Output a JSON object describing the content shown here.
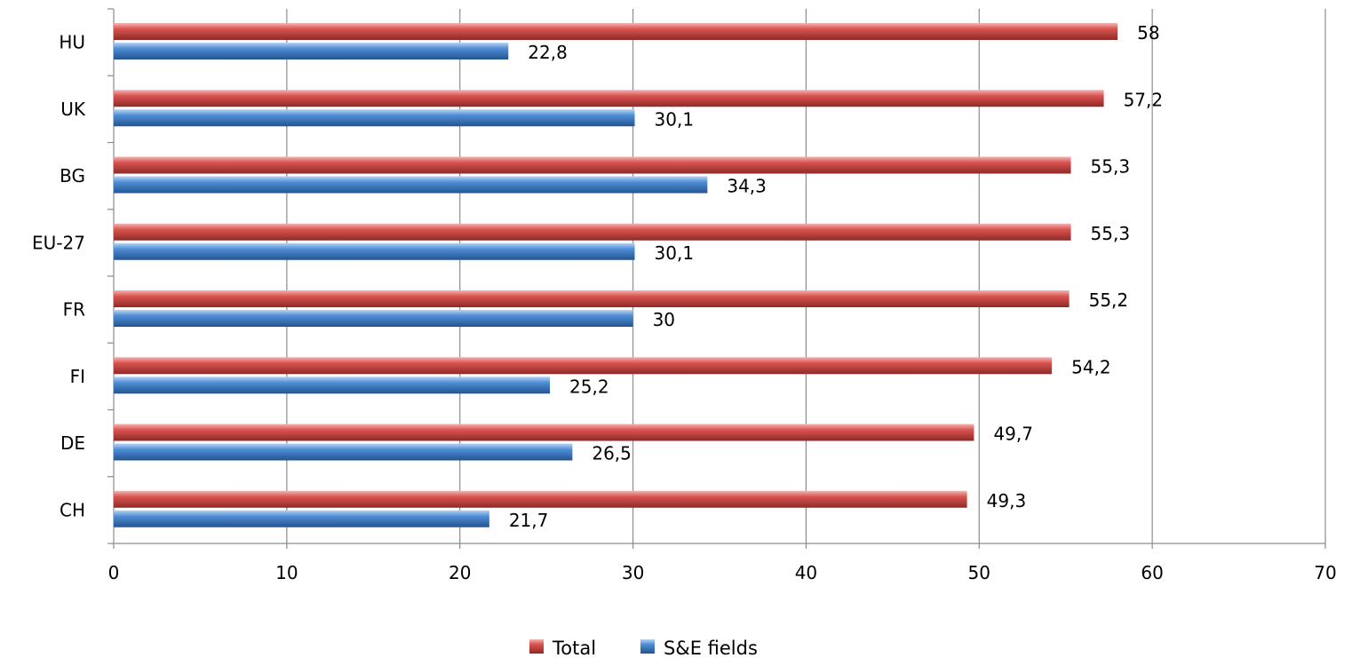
{
  "chart_data": {
    "type": "bar",
    "orientation": "horizontal",
    "categories": [
      "HU",
      "UK",
      "BG",
      "EU-27",
      "FR",
      "FI",
      "DE",
      "CH"
    ],
    "series": [
      {
        "name": "Total",
        "values": [
          58,
          57.2,
          55.3,
          55.3,
          55.2,
          54.2,
          49.7,
          49.3
        ],
        "value_labels": [
          "58",
          "57,2",
          "55,3",
          "55,3",
          "55,2",
          "54,2",
          "49,7",
          "49,3"
        ],
        "color": "#c0504d"
      },
      {
        "name": "S&E fields",
        "values": [
          22.8,
          30.1,
          34.3,
          30.1,
          30,
          25.2,
          26.5,
          21.7
        ],
        "value_labels": [
          "22,8",
          "30,1",
          "34,3",
          "30,1",
          "30",
          "25,2",
          "26,5",
          "21,7"
        ],
        "color": "#4f81bd"
      }
    ],
    "xlim": [
      0,
      70
    ],
    "xticks": [
      "0",
      "10",
      "20",
      "30",
      "40",
      "50",
      "60",
      "70"
    ],
    "title": "",
    "xlabel": "",
    "ylabel": "",
    "grid": "vertical",
    "legend_position": "bottom"
  }
}
